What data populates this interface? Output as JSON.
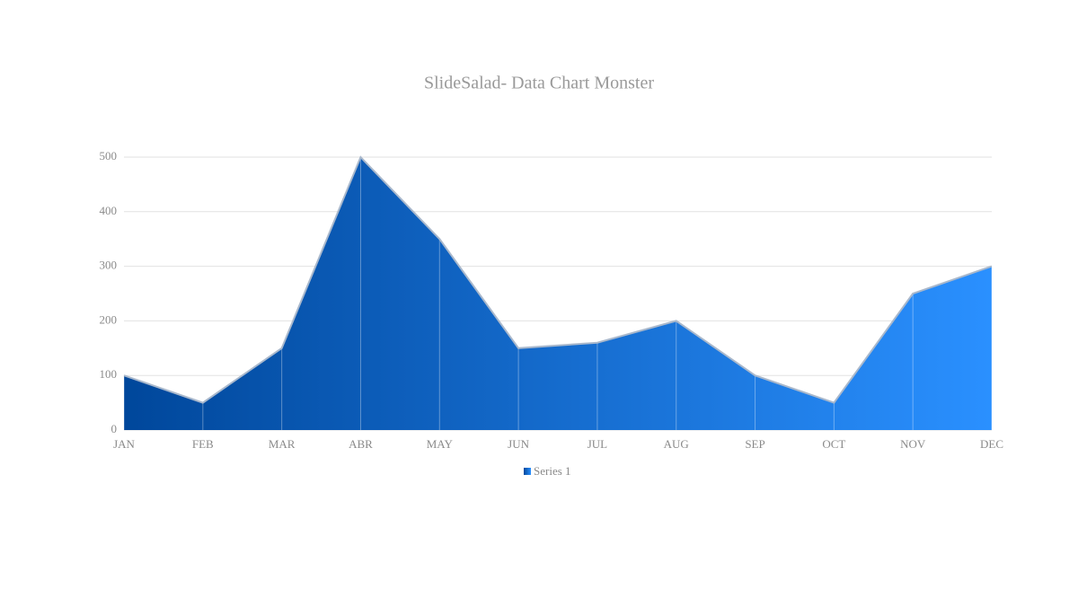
{
  "chart_data": {
    "type": "area",
    "title": "SlideSalad- Data Chart Monster",
    "categories": [
      "JAN",
      "FEB",
      "MAR",
      "ABR",
      "MAY",
      "JUN",
      "JUL",
      "AUG",
      "SEP",
      "OCT",
      "NOV",
      "DEC"
    ],
    "series": [
      {
        "name": "Series 1",
        "color": [
          "#00479b",
          "#2a90ff"
        ],
        "values": [
          100,
          50,
          150,
          500,
          350,
          150,
          160,
          200,
          100,
          50,
          250,
          300
        ]
      }
    ],
    "ylim": [
      0,
      500
    ],
    "yticks": [
      0,
      100,
      200,
      300,
      400,
      500
    ],
    "grid": true,
    "legend": "bottom"
  }
}
